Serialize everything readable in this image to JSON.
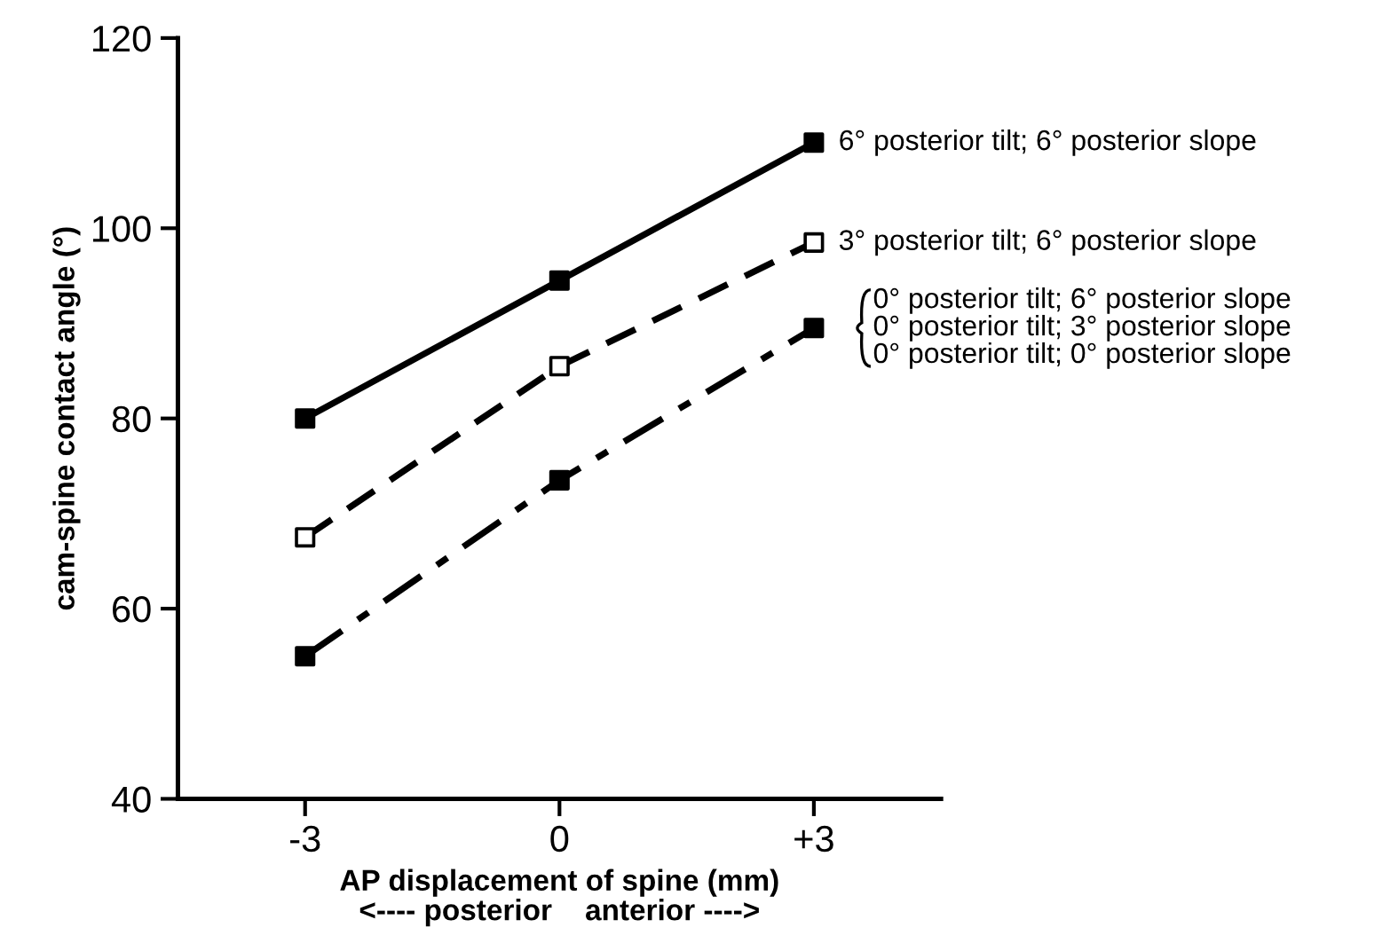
{
  "chart_data": {
    "type": "line",
    "xlabel": "AP displacement of spine (mm)\n<---- posterior    anterior ---->",
    "ylabel": "cam-spine contact angle (°)",
    "x": [
      -3,
      0,
      3
    ],
    "xlim": [
      -4.5,
      4.5
    ],
    "xticks": [
      -3,
      0,
      {
        "value": 3,
        "label": "+3"
      }
    ],
    "ylim": [
      40,
      120
    ],
    "yticks": [
      40,
      60,
      80,
      100,
      120
    ],
    "grid": false,
    "marker": "square",
    "series": [
      {
        "name": "6° posterior tilt; 6° posterior slope",
        "color": "#000000",
        "line_style": "solid",
        "values": [
          80,
          94.5,
          109
        ]
      },
      {
        "name": "3° posterior tilt; 6° posterior slope",
        "color": "#000000",
        "line_style": "dashed",
        "colors": [
          "#ffffff",
          "#ffffff",
          "#ffffff"
        ],
        "values": [
          67.5,
          85.5,
          98.5
        ]
      },
      {
        "name": "0° posterior tilt; 6° posterior slope\n0° posterior tilt; 3° posterior slope\n0° posterior tilt; 0° posterior slope",
        "color": "#000000",
        "line_style": "dashdot",
        "values": [
          55,
          73.5,
          89.5
        ]
      }
    ]
  }
}
